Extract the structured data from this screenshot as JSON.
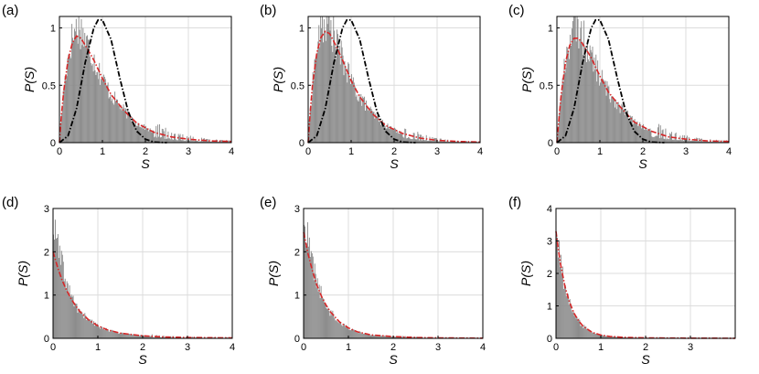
{
  "chart_data": [
    {
      "type": "histogram",
      "panel_label": "(a)",
      "xlabel": "S",
      "ylabel": "P(S)",
      "xlim": [
        0,
        4
      ],
      "ylim": [
        0,
        1.1
      ],
      "xticks": [
        0,
        1,
        2,
        3,
        4
      ],
      "yticks": [
        0,
        0.5,
        1
      ],
      "ytick_labels": [
        "0",
        "0.5",
        "1"
      ],
      "grid": true,
      "histogram": {
        "color": "#8c8c8c",
        "bin_width": 0.02,
        "peak_at": 0.45,
        "peak_value": 1.03,
        "shape": "gamma-like with long tail"
      },
      "series": [
        {
          "style": "dash-dot",
          "color": "#d62728",
          "curve": "fitted",
          "values": [
            [
              0,
              0
            ],
            [
              0.05,
              0.25
            ],
            [
              0.1,
              0.45
            ],
            [
              0.2,
              0.72
            ],
            [
              0.3,
              0.87
            ],
            [
              0.4,
              0.93
            ],
            [
              0.5,
              0.91
            ],
            [
              0.6,
              0.85
            ],
            [
              0.8,
              0.72
            ],
            [
              1.0,
              0.56
            ],
            [
              1.2,
              0.42
            ],
            [
              1.5,
              0.28
            ],
            [
              1.8,
              0.17
            ],
            [
              2.2,
              0.09
            ],
            [
              2.6,
              0.05
            ],
            [
              3.0,
              0.03
            ],
            [
              3.5,
              0.015
            ],
            [
              4.0,
              0.01
            ]
          ]
        },
        {
          "style": "dash-dot",
          "color": "#000000",
          "curve": "wigner",
          "values": [
            [
              0,
              0
            ],
            [
              0.2,
              0.06
            ],
            [
              0.4,
              0.3
            ],
            [
              0.6,
              0.7
            ],
            [
              0.8,
              1.0
            ],
            [
              0.9,
              1.07
            ],
            [
              1.0,
              1.07
            ],
            [
              1.2,
              0.9
            ],
            [
              1.4,
              0.57
            ],
            [
              1.6,
              0.27
            ],
            [
              1.8,
              0.1
            ],
            [
              2.0,
              0.03
            ],
            [
              2.2,
              0.005
            ],
            [
              2.5,
              0
            ]
          ]
        }
      ]
    },
    {
      "type": "histogram",
      "panel_label": "(b)",
      "xlabel": "S",
      "ylabel": "P(S)",
      "xlim": [
        0,
        4
      ],
      "ylim": [
        0,
        1.1
      ],
      "xticks": [
        0,
        1,
        2,
        3,
        4
      ],
      "yticks": [
        0,
        0.5,
        1
      ],
      "ytick_labels": [
        "0",
        "0.5",
        "1"
      ],
      "grid": true,
      "histogram": {
        "color": "#8c8c8c",
        "bin_width": 0.02,
        "peak_at": 0.42,
        "peak_value": 1.07,
        "shape": "gamma-like with long tail"
      },
      "series": [
        {
          "style": "dash-dot",
          "color": "#d62728",
          "curve": "fitted",
          "values": [
            [
              0,
              0
            ],
            [
              0.05,
              0.28
            ],
            [
              0.1,
              0.5
            ],
            [
              0.2,
              0.78
            ],
            [
              0.3,
              0.92
            ],
            [
              0.4,
              0.97
            ],
            [
              0.5,
              0.95
            ],
            [
              0.6,
              0.88
            ],
            [
              0.8,
              0.72
            ],
            [
              1.0,
              0.54
            ],
            [
              1.2,
              0.4
            ],
            [
              1.5,
              0.25
            ],
            [
              1.8,
              0.15
            ],
            [
              2.2,
              0.08
            ],
            [
              2.6,
              0.04
            ],
            [
              3.0,
              0.02
            ],
            [
              3.5,
              0.01
            ],
            [
              4.0,
              0.005
            ]
          ]
        },
        {
          "style": "dash-dot",
          "color": "#000000",
          "curve": "wigner",
          "values": [
            [
              0,
              0
            ],
            [
              0.2,
              0.06
            ],
            [
              0.4,
              0.3
            ],
            [
              0.6,
              0.7
            ],
            [
              0.8,
              1.0
            ],
            [
              0.9,
              1.07
            ],
            [
              1.0,
              1.07
            ],
            [
              1.2,
              0.9
            ],
            [
              1.4,
              0.57
            ],
            [
              1.6,
              0.27
            ],
            [
              1.8,
              0.1
            ],
            [
              2.0,
              0.03
            ],
            [
              2.2,
              0.005
            ],
            [
              2.5,
              0
            ]
          ]
        }
      ]
    },
    {
      "type": "histogram",
      "panel_label": "(c)",
      "xlabel": "S",
      "ylabel": "P(S)",
      "xlim": [
        0,
        4
      ],
      "ylim": [
        0,
        1.1
      ],
      "xticks": [
        0,
        1,
        2,
        3,
        4
      ],
      "yticks": [
        0,
        0.5,
        1
      ],
      "ytick_labels": [
        "0",
        "0.5",
        "1"
      ],
      "grid": true,
      "histogram": {
        "color": "#8c8c8c",
        "bin_width": 0.02,
        "peak_at": 0.48,
        "peak_value": 1.02,
        "shape": "gamma-like with long tail"
      },
      "series": [
        {
          "style": "dash-dot",
          "color": "#d62728",
          "curve": "fitted",
          "values": [
            [
              0,
              0
            ],
            [
              0.05,
              0.22
            ],
            [
              0.1,
              0.42
            ],
            [
              0.2,
              0.7
            ],
            [
              0.3,
              0.85
            ],
            [
              0.4,
              0.91
            ],
            [
              0.5,
              0.91
            ],
            [
              0.6,
              0.86
            ],
            [
              0.8,
              0.74
            ],
            [
              1.0,
              0.58
            ],
            [
              1.2,
              0.44
            ],
            [
              1.5,
              0.3
            ],
            [
              1.8,
              0.18
            ],
            [
              2.2,
              0.1
            ],
            [
              2.6,
              0.05
            ],
            [
              3.0,
              0.03
            ],
            [
              3.5,
              0.015
            ],
            [
              4.0,
              0.01
            ]
          ]
        },
        {
          "style": "dash-dot",
          "color": "#000000",
          "curve": "wigner",
          "values": [
            [
              0,
              0
            ],
            [
              0.2,
              0.06
            ],
            [
              0.4,
              0.3
            ],
            [
              0.6,
              0.7
            ],
            [
              0.8,
              1.0
            ],
            [
              0.9,
              1.07
            ],
            [
              1.0,
              1.07
            ],
            [
              1.2,
              0.9
            ],
            [
              1.4,
              0.57
            ],
            [
              1.6,
              0.27
            ],
            [
              1.8,
              0.1
            ],
            [
              2.0,
              0.03
            ],
            [
              2.2,
              0.005
            ],
            [
              2.5,
              0
            ]
          ]
        }
      ]
    },
    {
      "type": "histogram",
      "panel_label": "(d)",
      "xlabel": "S",
      "ylabel": "P(S)",
      "xlim": [
        0,
        4
      ],
      "ylim": [
        0,
        3
      ],
      "xticks": [
        0,
        1,
        2,
        3,
        4
      ],
      "yticks": [
        0,
        1,
        2,
        3
      ],
      "ytick_labels": [
        "0",
        "1",
        "2",
        "3"
      ],
      "grid": true,
      "histogram": {
        "color": "#8c8c8c",
        "bin_width": 0.02,
        "peak_at": 0.02,
        "peak_value": 2.7,
        "shape": "exponential decay"
      },
      "series": [
        {
          "style": "dash-dot",
          "color": "#d62728",
          "curve": "fitted",
          "values": [
            [
              0,
              2.0
            ],
            [
              0.1,
              1.65
            ],
            [
              0.2,
              1.35
            ],
            [
              0.3,
              1.12
            ],
            [
              0.4,
              0.92
            ],
            [
              0.5,
              0.76
            ],
            [
              0.6,
              0.62
            ],
            [
              0.8,
              0.42
            ],
            [
              1.0,
              0.29
            ],
            [
              1.2,
              0.2
            ],
            [
              1.5,
              0.12
            ],
            [
              2.0,
              0.06
            ],
            [
              2.5,
              0.03
            ],
            [
              3.0,
              0.02
            ],
            [
              4.0,
              0.01
            ]
          ]
        }
      ]
    },
    {
      "type": "histogram",
      "panel_label": "(e)",
      "xlabel": "S",
      "ylabel": "P(S)",
      "xlim": [
        0,
        4
      ],
      "ylim": [
        0,
        3
      ],
      "xticks": [
        0,
        1,
        2,
        3,
        4
      ],
      "yticks": [
        0,
        1,
        2,
        3
      ],
      "ytick_labels": [
        "0",
        "1",
        "2",
        "3"
      ],
      "grid": true,
      "histogram": {
        "color": "#8c8c8c",
        "bin_width": 0.02,
        "peak_at": 0.02,
        "peak_value": 2.85,
        "shape": "exponential decay"
      },
      "series": [
        {
          "style": "dash-dot",
          "color": "#d62728",
          "curve": "fitted",
          "values": [
            [
              0,
              2.45
            ],
            [
              0.1,
              1.95
            ],
            [
              0.2,
              1.55
            ],
            [
              0.3,
              1.22
            ],
            [
              0.4,
              0.97
            ],
            [
              0.5,
              0.77
            ],
            [
              0.6,
              0.61
            ],
            [
              0.8,
              0.38
            ],
            [
              1.0,
              0.24
            ],
            [
              1.2,
              0.15
            ],
            [
              1.5,
              0.08
            ],
            [
              2.0,
              0.04
            ],
            [
              2.5,
              0.02
            ],
            [
              3.0,
              0.01
            ],
            [
              4.0,
              0.005
            ]
          ]
        }
      ]
    },
    {
      "type": "histogram",
      "panel_label": "(f)",
      "xlabel": "S",
      "ylabel": "P(S)",
      "xlim": [
        0,
        4
      ],
      "ylim": [
        0,
        4
      ],
      "xticks": [
        0,
        1,
        2,
        3
      ],
      "yticks": [
        0,
        1,
        2,
        3,
        4
      ],
      "ytick_labels": [
        "0",
        "1",
        "2",
        "3",
        "4"
      ],
      "grid": true,
      "histogram": {
        "color": "#8c8c8c",
        "bin_width": 0.02,
        "peak_at": 0.02,
        "peak_value": 3.3,
        "shape": "exponential decay"
      },
      "series": [
        {
          "style": "dash-dot",
          "color": "#d62728",
          "curve": "fitted",
          "values": [
            [
              0,
              3.3
            ],
            [
              0.05,
              2.75
            ],
            [
              0.1,
              2.3
            ],
            [
              0.2,
              1.6
            ],
            [
              0.3,
              1.12
            ],
            [
              0.4,
              0.78
            ],
            [
              0.5,
              0.55
            ],
            [
              0.6,
              0.38
            ],
            [
              0.8,
              0.19
            ],
            [
              1.0,
              0.1
            ],
            [
              1.2,
              0.06
            ],
            [
              1.5,
              0.03
            ],
            [
              2.0,
              0.015
            ],
            [
              3.0,
              0.005
            ],
            [
              4.0,
              0.002
            ]
          ]
        }
      ]
    }
  ]
}
